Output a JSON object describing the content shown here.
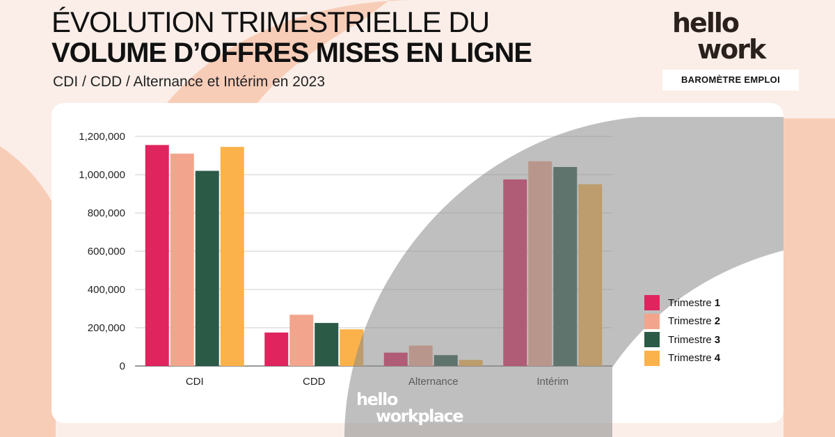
{
  "header": {
    "title_line1": "ÉVOLUTION TRIMESTRIELLE DU",
    "title_line2": "VOLUME D’OFFRES MISES EN LIGNE",
    "subtitle": "CDI / CDD / Alternance et Intérim en 2023"
  },
  "brand": {
    "logo_line1": "hello",
    "logo_line2": "work",
    "badge": "BAROMÈTRE EMPLOI",
    "footer_logo_line1": "hello",
    "footer_logo_line2": "workplace"
  },
  "colors": {
    "background": "#fbeee8",
    "peach_shape": "#f8cdb8",
    "overlay_gray": "#8a8a8a",
    "trimestre_1": "#e0245e",
    "trimestre_2": "#f2a58c",
    "trimestre_3": "#2b5a47",
    "trimestre_4": "#fbb24a"
  },
  "chart_data": {
    "type": "bar",
    "title": "ÉVOLUTION TRIMESTRIELLE DU VOLUME D’OFFRES MISES EN LIGNE",
    "subtitle": "CDI / CDD / Alternance et Intérim en 2023",
    "categories": [
      "CDI",
      "CDD",
      "Alternance",
      "Intérim"
    ],
    "series": [
      {
        "name": "Trimestre 1",
        "label_prefix": "Trimestre",
        "label_number": "1",
        "values": [
          1155000,
          175000,
          70000,
          975000
        ]
      },
      {
        "name": "Trimestre 2",
        "label_prefix": "Trimestre",
        "label_number": "2",
        "values": [
          1110000,
          268000,
          107000,
          1070000
        ]
      },
      {
        "name": "Trimestre 3",
        "label_prefix": "Trimestre",
        "label_number": "3",
        "values": [
          1020000,
          225000,
          57000,
          1040000
        ]
      },
      {
        "name": "Trimestre 4",
        "label_prefix": "Trimestre",
        "label_number": "4",
        "values": [
          1145000,
          192000,
          32000,
          950000
        ]
      }
    ],
    "y_ticks": [
      "0",
      "200,000",
      "400,000",
      "600,000",
      "800,000",
      "1,000,000",
      "1,200,000"
    ],
    "ylim": [
      0,
      1200000
    ],
    "grid": true,
    "legend_position": "right"
  }
}
